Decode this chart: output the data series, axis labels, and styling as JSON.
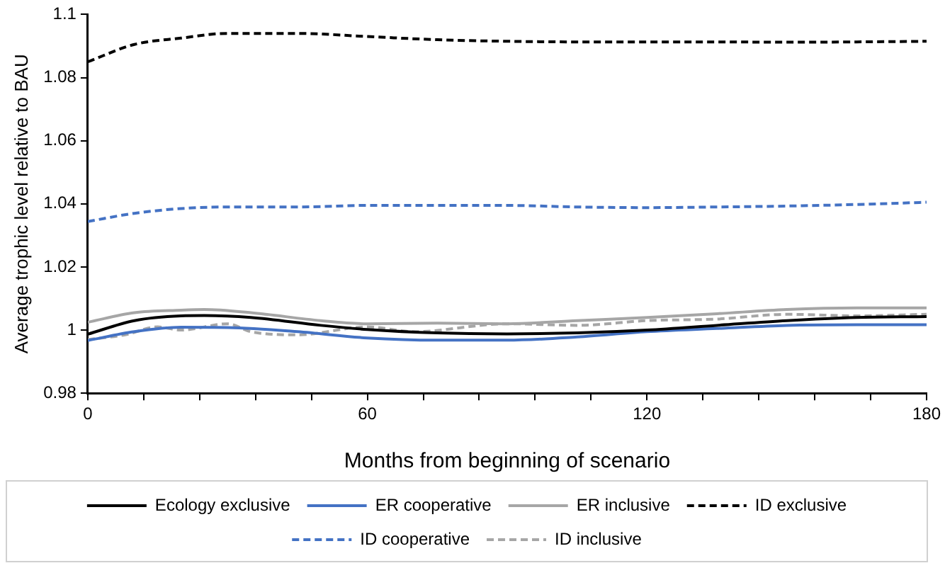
{
  "chart_data": {
    "type": "line",
    "xlabel": "Months from beginning of scenario",
    "ylabel": "Average trophic level relative to BAU",
    "xlim": [
      0,
      180
    ],
    "ylim": [
      0.98,
      1.1
    ],
    "xticks": [
      0,
      {
        "value": 12,
        "label": null
      },
      {
        "value": 24,
        "label": null
      },
      {
        "value": 36,
        "label": null
      },
      {
        "value": 48,
        "label": null
      },
      60,
      {
        "value": 72,
        "label": null
      },
      {
        "value": 84,
        "label": null
      },
      {
        "value": 96,
        "label": null
      },
      {
        "value": 108,
        "label": null
      },
      120,
      {
        "value": 132,
        "label": null
      },
      {
        "value": 144,
        "label": null
      },
      {
        "value": 156,
        "label": null
      },
      {
        "value": 168,
        "label": null
      },
      180
    ],
    "yticks": [
      0.98,
      1,
      1.02,
      1.04,
      1.06,
      1.08,
      1.1
    ],
    "grid": false,
    "legend": "bottom",
    "marker": "none",
    "series": [
      {
        "name": "Ecology exclusive",
        "color": "#000000",
        "line_style": "solid",
        "x": [
          0,
          10,
          20,
          25,
          35,
          50,
          60,
          75,
          90,
          105,
          120,
          135,
          150,
          165,
          180
        ],
        "values": [
          0.9987,
          1.003,
          1.0045,
          1.0046,
          1.004,
          1.0015,
          1.0002,
          0.9991,
          0.9988,
          0.9991,
          1.0,
          1.0015,
          1.003,
          1.004,
          1.0043
        ]
      },
      {
        "name": "ER cooperative",
        "color": "#4472c4",
        "line_style": "solid",
        "x": [
          0,
          10,
          20,
          30,
          45,
          60,
          75,
          90,
          105,
          120,
          135,
          150,
          165,
          180
        ],
        "values": [
          0.9967,
          0.9995,
          1.0009,
          1.0008,
          0.9995,
          0.9975,
          0.9968,
          0.9968,
          0.9978,
          0.9995,
          1.0005,
          1.0015,
          1.0017,
          1.0017
        ]
      },
      {
        "name": "ER inclusive",
        "color": "#a6a6a6",
        "line_style": "solid",
        "x": [
          0,
          10,
          20,
          25,
          35,
          50,
          60,
          75,
          90,
          105,
          120,
          135,
          150,
          165,
          180
        ],
        "values": [
          1.0025,
          1.0055,
          1.0063,
          1.0065,
          1.0055,
          1.003,
          1.002,
          1.0022,
          1.002,
          1.003,
          1.004,
          1.0052,
          1.0065,
          1.007,
          1.007
        ]
      },
      {
        "name": "ID exclusive",
        "color": "#000000",
        "line_style": "dashed",
        "x": [
          0,
          10,
          20,
          30,
          45,
          60,
          75,
          90,
          105,
          120,
          135,
          150,
          165,
          180
        ],
        "values": [
          1.085,
          1.0905,
          1.0925,
          1.094,
          1.094,
          1.093,
          1.092,
          1.0915,
          1.0913,
          1.0913,
          1.0913,
          1.0912,
          1.0913,
          1.0915
        ]
      },
      {
        "name": "ID cooperative",
        "color": "#4472c4",
        "line_style": "dashed",
        "x": [
          0,
          10,
          20,
          30,
          45,
          60,
          75,
          90,
          105,
          120,
          135,
          150,
          165,
          180
        ],
        "values": [
          1.0344,
          1.037,
          1.0385,
          1.039,
          1.039,
          1.0395,
          1.0395,
          1.0395,
          1.039,
          1.0388,
          1.039,
          1.0393,
          1.0398,
          1.0405
        ]
      },
      {
        "name": "ID inclusive",
        "color": "#a6a6a6",
        "line_style": "dashed",
        "x": [
          0,
          8,
          15,
          20,
          30,
          35,
          45,
          60,
          70,
          90,
          105,
          120,
          135,
          150,
          165,
          180
        ],
        "values": [
          0.997,
          0.9985,
          1.001,
          1.0,
          1.002,
          0.9995,
          0.9985,
          1.001,
          0.9995,
          1.002,
          1.0015,
          1.003,
          1.0035,
          1.005,
          1.0045,
          1.005
        ]
      }
    ]
  }
}
